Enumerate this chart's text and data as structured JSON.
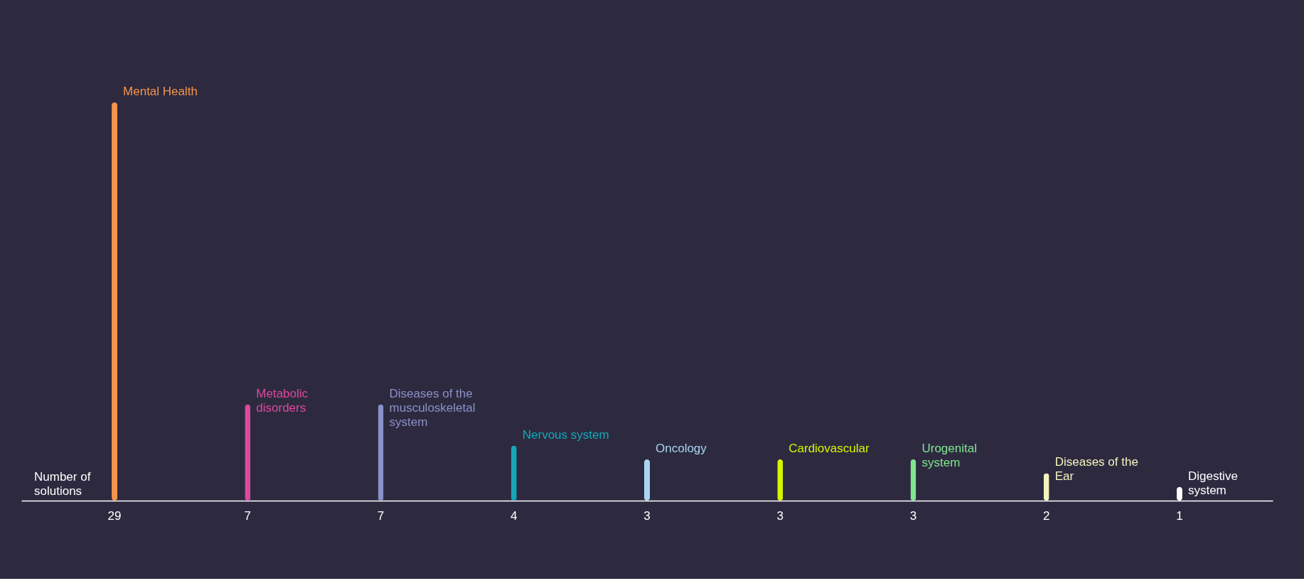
{
  "chart_data": {
    "type": "bar",
    "annotations": [
      "Number of solutions"
    ],
    "categories": [
      "Mental Health",
      "Metabolic disorders",
      "Diseases of the musculoskeletal system",
      "Nervous system",
      "Oncology",
      "Cardiovascular",
      "Urogenital system",
      "Diseases of the Ear",
      "Digestive system"
    ],
    "values": [
      29,
      7,
      7,
      4,
      3,
      3,
      3,
      2,
      1
    ],
    "colors": [
      "#f5944a",
      "#dc4a9c",
      "#8c90c8",
      "#14a8b8",
      "#a9d5f2",
      "#d8f500",
      "#80e68e",
      "#f4f5bd",
      "#ffffff"
    ],
    "data_labels": true,
    "grid": false
  }
}
